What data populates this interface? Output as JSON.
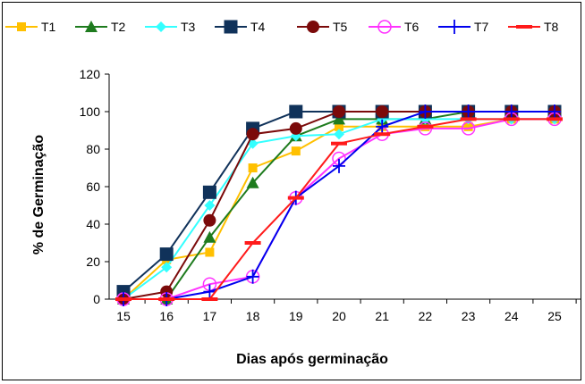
{
  "chart_data": {
    "type": "line",
    "title": "",
    "xlabel": "Dias após germinação",
    "ylabel": "% de Germinação",
    "x": [
      15,
      16,
      17,
      18,
      19,
      20,
      21,
      22,
      23,
      24,
      25
    ],
    "ylim": [
      0,
      120
    ],
    "yticks": [
      0,
      20,
      40,
      60,
      80,
      100,
      120
    ],
    "grid": false,
    "legend_position": "top",
    "series": [
      {
        "name": "T1",
        "color": "#FFC000",
        "marker": "square",
        "values": [
          0,
          21,
          25,
          70,
          79,
          92,
          92,
          92,
          92,
          96,
          96
        ]
      },
      {
        "name": "T2",
        "color": "#1E7B1E",
        "marker": "triangle",
        "values": [
          0,
          0,
          33,
          62,
          87,
          96,
          96,
          96,
          100,
          100,
          100
        ]
      },
      {
        "name": "T3",
        "color": "#33FFFF",
        "marker": "diamond",
        "values": [
          0,
          17,
          50,
          83,
          87,
          88,
          96,
          96,
          96,
          96,
          96
        ]
      },
      {
        "name": "T4",
        "color": "#10325A",
        "marker": "square-large",
        "values": [
          4,
          24,
          57,
          91,
          100,
          100,
          100,
          100,
          100,
          100,
          100
        ]
      },
      {
        "name": "T5",
        "color": "#7B0A0A",
        "marker": "circle",
        "values": [
          0,
          4,
          42,
          88,
          91,
          100,
          100,
          100,
          100,
          100,
          100
        ]
      },
      {
        "name": "T6",
        "color": "#FF33FF",
        "marker": "circle-open",
        "values": [
          0,
          0,
          8,
          12,
          54,
          75,
          88,
          91,
          91,
          96,
          96
        ]
      },
      {
        "name": "T7",
        "color": "#0000EE",
        "marker": "plus",
        "values": [
          0,
          0,
          4,
          12,
          54,
          71,
          92,
          100,
          100,
          100,
          100
        ]
      },
      {
        "name": "T8",
        "color": "#FF1A1A",
        "marker": "dash",
        "values": [
          0,
          0,
          0,
          30,
          54,
          83,
          88,
          92,
          96,
          96,
          96
        ]
      }
    ]
  }
}
